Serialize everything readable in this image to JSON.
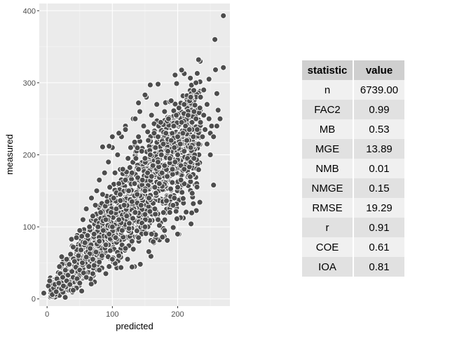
{
  "chart_data": {
    "type": "scatter",
    "xlabel": "predicted",
    "ylabel": "measured",
    "xlim": [
      -12,
      280
    ],
    "ylim": [
      -10,
      410
    ],
    "x_ticks": [
      0,
      100,
      200
    ],
    "y_ticks": [
      0,
      100,
      200,
      300,
      400
    ],
    "x_tick_labels": [
      "0",
      "100",
      "200"
    ],
    "y_tick_labels": [
      "0",
      "100",
      "200",
      "300",
      "400"
    ],
    "n": 6739,
    "background": "#ebebeb",
    "point_color": "#4d4d4d",
    "point_edge": "#ffffff",
    "grid": true,
    "points": [
      [
        -5,
        8
      ],
      [
        2,
        18
      ],
      [
        4,
        25
      ],
      [
        6,
        12
      ],
      [
        8,
        6
      ],
      [
        10,
        15
      ],
      [
        12,
        20
      ],
      [
        14,
        10
      ],
      [
        15,
        28
      ],
      [
        18,
        22
      ],
      [
        20,
        35
      ],
      [
        22,
        14
      ],
      [
        24,
        30
      ],
      [
        25,
        18
      ],
      [
        28,
        40
      ],
      [
        30,
        25
      ],
      [
        30,
        55
      ],
      [
        32,
        33
      ],
      [
        34,
        48
      ],
      [
        35,
        20
      ],
      [
        36,
        62
      ],
      [
        38,
        38
      ],
      [
        40,
        30
      ],
      [
        40,
        72
      ],
      [
        42,
        52
      ],
      [
        44,
        44
      ],
      [
        45,
        85
      ],
      [
        46,
        28
      ],
      [
        48,
        60
      ],
      [
        50,
        40
      ],
      [
        50,
        95
      ],
      [
        52,
        68
      ],
      [
        54,
        50
      ],
      [
        55,
        110
      ],
      [
        56,
        36
      ],
      [
        58,
        78
      ],
      [
        60,
        58
      ],
      [
        60,
        125
      ],
      [
        62,
        88
      ],
      [
        64,
        45
      ],
      [
        65,
        100
      ],
      [
        66,
        70
      ],
      [
        68,
        140
      ],
      [
        70,
        55
      ],
      [
        70,
        115
      ],
      [
        72,
        90
      ],
      [
        74,
        130
      ],
      [
        75,
        65
      ],
      [
        76,
        150
      ],
      [
        78,
        100
      ],
      [
        80,
        80
      ],
      [
        80,
        165
      ],
      [
        82,
        120
      ],
      [
        84,
        60
      ],
      [
        85,
        145
      ],
      [
        86,
        95
      ],
      [
        88,
        175
      ],
      [
        90,
        110
      ],
      [
        90,
        75
      ],
      [
        92,
        135
      ],
      [
        94,
        190
      ],
      [
        95,
        90
      ],
      [
        96,
        155
      ],
      [
        98,
        120
      ],
      [
        100,
        210
      ],
      [
        100,
        100
      ],
      [
        102,
        140
      ],
      [
        104,
        175
      ],
      [
        105,
        85
      ],
      [
        106,
        125
      ],
      [
        108,
        200
      ],
      [
        110,
        110
      ],
      [
        110,
        160
      ],
      [
        112,
        145
      ],
      [
        114,
        225
      ],
      [
        115,
        95
      ],
      [
        116,
        180
      ],
      [
        118,
        130
      ],
      [
        120,
        165
      ],
      [
        120,
        240
      ],
      [
        122,
        115
      ],
      [
        124,
        195
      ],
      [
        125,
        150
      ],
      [
        126,
        105
      ],
      [
        128,
        210
      ],
      [
        130,
        135
      ],
      [
        130,
        175
      ],
      [
        132,
        250
      ],
      [
        134,
        160
      ],
      [
        135,
        120
      ],
      [
        136,
        195
      ],
      [
        138,
        145
      ],
      [
        140,
        225
      ],
      [
        140,
        180
      ],
      [
        142,
        260
      ],
      [
        144,
        130
      ],
      [
        145,
        205
      ],
      [
        146,
        165
      ],
      [
        148,
        240
      ],
      [
        150,
        150
      ],
      [
        150,
        195
      ],
      [
        152,
        280
      ],
      [
        154,
        175
      ],
      [
        155,
        220
      ],
      [
        156,
        140
      ],
      [
        158,
        200
      ],
      [
        160,
        255
      ],
      [
        160,
        170
      ],
      [
        162,
        185
      ],
      [
        164,
        230
      ],
      [
        165,
        155
      ],
      [
        166,
        210
      ],
      [
        168,
        270
      ],
      [
        170,
        190
      ],
      [
        170,
        225
      ],
      [
        172,
        160
      ],
      [
        174,
        245
      ],
      [
        175,
        200
      ],
      [
        176,
        175
      ],
      [
        178,
        215
      ],
      [
        180,
        260
      ],
      [
        180,
        185
      ],
      [
        182,
        230
      ],
      [
        184,
        170
      ],
      [
        185,
        205
      ],
      [
        186,
        250
      ],
      [
        188,
        195
      ],
      [
        190,
        220
      ],
      [
        190,
        275
      ],
      [
        192,
        180
      ],
      [
        194,
        240
      ],
      [
        195,
        210
      ],
      [
        196,
        190
      ],
      [
        198,
        255
      ],
      [
        200,
        225
      ],
      [
        200,
        200
      ],
      [
        202,
        265
      ],
      [
        204,
        215
      ],
      [
        205,
        185
      ],
      [
        206,
        245
      ],
      [
        208,
        230
      ],
      [
        210,
        205
      ],
      [
        210,
        270
      ],
      [
        212,
        240
      ],
      [
        214,
        220
      ],
      [
        215,
        195
      ],
      [
        216,
        255
      ],
      [
        218,
        235
      ],
      [
        220,
        210
      ],
      [
        220,
        280
      ],
      [
        222,
        245
      ],
      [
        224,
        225
      ],
      [
        225,
        260
      ],
      [
        226,
        200
      ],
      [
        228,
        250
      ],
      [
        230,
        235
      ],
      [
        232,
        215
      ],
      [
        234,
        265
      ],
      [
        235,
        245
      ],
      [
        238,
        225
      ],
      [
        240,
        255
      ],
      [
        242,
        235
      ],
      [
        245,
        270
      ],
      [
        248,
        250
      ],
      [
        250,
        230
      ],
      [
        255,
        158
      ],
      [
        257,
        360
      ],
      [
        258,
        318
      ],
      [
        260,
        285
      ],
      [
        262,
        262
      ],
      [
        265,
        250
      ],
      [
        270,
        393
      ],
      [
        270,
        321
      ],
      [
        232,
        332
      ],
      [
        230,
        313
      ],
      [
        248,
        305
      ],
      [
        252,
        240
      ],
      [
        240,
        290
      ],
      [
        235,
        280
      ],
      [
        228,
        300
      ],
      [
        170,
        298
      ],
      [
        158,
        297
      ],
      [
        150,
        283
      ],
      [
        140,
        272
      ],
      [
        135,
        250
      ],
      [
        120,
        235
      ],
      [
        110,
        230
      ],
      [
        100,
        225
      ],
      [
        95,
        212
      ],
      [
        85,
        211
      ],
      [
        188,
        120
      ],
      [
        195,
        140
      ],
      [
        200,
        155
      ],
      [
        180,
        95
      ],
      [
        170,
        110
      ],
      [
        165,
        125
      ],
      [
        150,
        100
      ],
      [
        140,
        85
      ],
      [
        130,
        80
      ],
      [
        120,
        70
      ],
      [
        110,
        60
      ],
      [
        100,
        55
      ],
      [
        95,
        45
      ],
      [
        90,
        35
      ],
      [
        80,
        40
      ],
      [
        70,
        35
      ],
      [
        60,
        30
      ],
      [
        50,
        22
      ],
      [
        45,
        15
      ],
      [
        40,
        12
      ],
      [
        172,
        102
      ],
      [
        160,
        90
      ],
      [
        210,
        180
      ],
      [
        220,
        190
      ],
      [
        225,
        195
      ],
      [
        245,
        215
      ],
      [
        250,
        200
      ],
      [
        255,
        225
      ],
      [
        260,
        240
      ],
      [
        205,
        165
      ]
    ]
  },
  "table": {
    "headers": [
      "statistic",
      "value"
    ],
    "rows": [
      [
        "n",
        "6739.00"
      ],
      [
        "FAC2",
        "0.99"
      ],
      [
        "MB",
        "0.53"
      ],
      [
        "MGE",
        "13.89"
      ],
      [
        "NMB",
        "0.01"
      ],
      [
        "NMGE",
        "0.15"
      ],
      [
        "RMSE",
        "19.29"
      ],
      [
        "r",
        "0.91"
      ],
      [
        "COE",
        "0.61"
      ],
      [
        "IOA",
        "0.81"
      ]
    ]
  }
}
